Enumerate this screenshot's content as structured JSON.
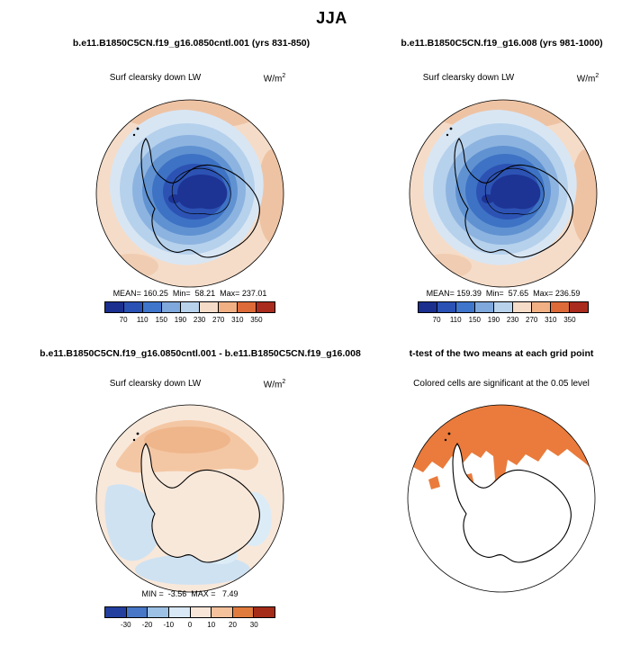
{
  "figure": {
    "title": "JJA"
  },
  "panels": {
    "top_left": {
      "title": "b.e11.B1850C5CN.f19_g16.0850cntl.001 (yrs 831-850)",
      "variable": "Surf clearsky down LW",
      "units_base": "W/m",
      "units_exp": "2",
      "stats": "MEAN= 160.25  Min=  58.21  Max= 237.01"
    },
    "top_right": {
      "title": "b.e11.B1850C5CN.f19_g16.008 (yrs 981-1000)",
      "variable": "Surf clearsky down LW",
      "units_base": "W/m",
      "units_exp": "2",
      "stats": "MEAN= 159.39  Min=  57.65  Max= 236.59"
    },
    "bottom_left": {
      "title": "b.e11.B1850C5CN.f19_g16.0850cntl.001 - b.e11.B1850C5CN.f19_g16.008",
      "variable": "Surf clearsky down LW",
      "units_base": "W/m",
      "units_exp": "2",
      "stats": "MIN =  -3.56  MAX =   7.49"
    },
    "bottom_right": {
      "title": "t-test of the two means at each grid point",
      "subtitle": "Colored cells are significant at the 0.05 level"
    }
  },
  "colorbars": {
    "top": {
      "colors": [
        "#1b2f8e",
        "#2a52b5",
        "#3f76cc",
        "#7fa8dc",
        "#b8d2ec",
        "#f5dcc8",
        "#f0b084",
        "#dd6b3a",
        "#a92c1e"
      ],
      "ticks": [
        "70",
        "110",
        "150",
        "190",
        "230",
        "270",
        "310",
        "350"
      ]
    },
    "diff": {
      "colors": [
        "#23409f",
        "#4777c6",
        "#9dc1e4",
        "#d8e8f4",
        "#f8e6d8",
        "#f3c19c",
        "#e07b3e",
        "#a42c18"
      ],
      "ticks": [
        "-30",
        "-20",
        "-10",
        "0",
        "10",
        "20",
        "30"
      ]
    }
  },
  "chart_data": [
    {
      "type": "heatmap",
      "projection": "south-polar-stereographic",
      "season": "JJA",
      "title": "b.e11.B1850C5CN.f19_g16.0850cntl.001 (yrs 831-850)",
      "variable": "Surf clearsky down LW",
      "units": "W/m^2",
      "stats": {
        "mean": 160.25,
        "min": 58.21,
        "max": 237.01
      },
      "contour_levels": [
        70,
        110,
        150,
        190,
        230,
        270,
        310,
        350
      ],
      "palette": [
        "#1b2f8e",
        "#2a52b5",
        "#3f76cc",
        "#7fa8dc",
        "#b8d2ec",
        "#f5dcc8",
        "#f0b084",
        "#dd6b3a",
        "#a92c1e"
      ],
      "legend_position": "bottom",
      "description": "Lowest values (dark blue, below 70-110 W/m^2) over the Antarctic interior, increasing outward in concentric contour bands to 230-270 W/m^2 (pale orange) over the surrounding Southern Ocean; black Antarctica coastline overlaid."
    },
    {
      "type": "heatmap",
      "projection": "south-polar-stereographic",
      "season": "JJA",
      "title": "b.e11.B1850C5CN.f19_g16.008 (yrs 981-1000)",
      "variable": "Surf clearsky down LW",
      "units": "W/m^2",
      "stats": {
        "mean": 159.39,
        "min": 57.65,
        "max": 236.59
      },
      "contour_levels": [
        70,
        110,
        150,
        190,
        230,
        270,
        310,
        350
      ],
      "palette": [
        "#1b2f8e",
        "#2a52b5",
        "#3f76cc",
        "#7fa8dc",
        "#b8d2ec",
        "#f5dcc8",
        "#f0b084",
        "#dd6b3a",
        "#a92c1e"
      ],
      "legend_position": "bottom",
      "description": "Nearly identical spatial pattern to the control run panel."
    },
    {
      "type": "heatmap",
      "projection": "south-polar-stereographic",
      "season": "JJA",
      "title": "b.e11.B1850C5CN.f19_g16.0850cntl.001 - b.e11.B1850C5CN.f19_g16.008",
      "variable": "Surf clearsky down LW difference",
      "units": "W/m^2",
      "stats": {
        "min": -3.56,
        "max": 7.49
      },
      "contour_levels": [
        -30,
        -20,
        -10,
        0,
        10,
        20,
        30
      ],
      "palette": [
        "#23409f",
        "#4777c6",
        "#9dc1e4",
        "#d8e8f4",
        "#f8e6d8",
        "#f3c19c",
        "#e07b3e",
        "#a42c18"
      ],
      "legend_position": "bottom",
      "description": "Differences are small: weak positive band (0 to 10, light orange) over the ocean at the top of the map, weak negative values (-10 to 0, pale blue) southwest of the continent and along the bottom, near-zero (pale) elsewhere."
    },
    {
      "type": "map",
      "projection": "south-polar-stereographic",
      "season": "JJA",
      "title": "t-test of the two means at each grid point",
      "legend": "Colored cells are significant at the 0.05 level",
      "significant_color": "#ea7b3c",
      "description": "Orange significant cells form a jagged band across the northern (top) ocean sector of the map with a tongue extending south near the Antarctic Peninsula; the rest of the domain is white (not significant); black Antarctica coastline overlaid."
    }
  ]
}
